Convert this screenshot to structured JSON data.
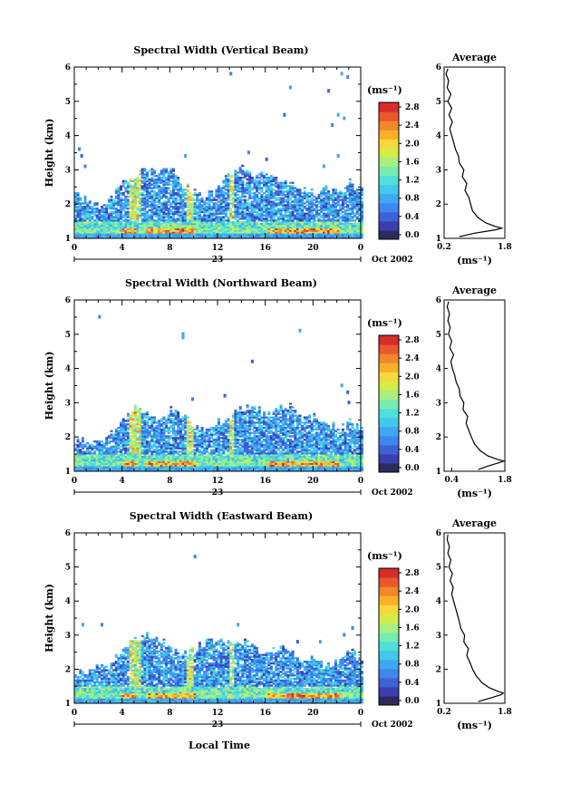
{
  "colors": {
    "scale": [
      "#2d2a5c",
      "#3a3fb0",
      "#3c62d8",
      "#3f86ef",
      "#3fa8f2",
      "#42c8ec",
      "#4fe0d8",
      "#78ecb0",
      "#a8f080",
      "#d4ec48",
      "#f6d83a",
      "#f8b02a",
      "#f3872a",
      "#e8582c",
      "#d62d2d"
    ]
  },
  "x_axis": {
    "ticks": [
      "0",
      "4",
      "8",
      "12",
      "16",
      "20",
      "0"
    ],
    "date_day": "23",
    "date_month": "Oct 2002",
    "label": "Local Time"
  },
  "colorbar": {
    "unit": "(ms⁻¹)"
  },
  "profile_unit": "(ms⁻¹)",
  "chart_data": [
    {
      "type": "heatmap",
      "title": "Spectral Width (Vertical Beam)",
      "ylabel": "Height (km)",
      "xlim": [
        0,
        24
      ],
      "ylim": [
        1,
        6
      ],
      "yticks": [
        "1",
        "2",
        "3",
        "4",
        "5",
        "6"
      ],
      "colorbar_ticks": [
        "0.0",
        "0.4",
        "0.8",
        "1.2",
        "1.6",
        "2.0",
        "2.4",
        "2.8"
      ],
      "colorbar_range": [
        0,
        3.0
      ],
      "profile": {
        "title": "Average",
        "xticks": [
          "0.2",
          "1.8"
        ],
        "xlim": [
          0.2,
          1.8
        ],
        "height": [
          1.05,
          1.15,
          1.25,
          1.3,
          1.35,
          1.45,
          1.6,
          1.8,
          2.0,
          2.2,
          2.4,
          2.6,
          2.8,
          3.0,
          3.2,
          3.4,
          3.6,
          3.8,
          4.0,
          4.2,
          4.4,
          4.6,
          4.8,
          5.0,
          5.2,
          5.4,
          5.6,
          5.8,
          5.95
        ],
        "width": [
          0.6,
          1.0,
          1.55,
          1.72,
          1.55,
          1.3,
          1.1,
          0.95,
          0.9,
          0.85,
          0.75,
          0.8,
          0.68,
          0.72,
          0.6,
          0.58,
          0.5,
          0.45,
          0.4,
          0.35,
          0.42,
          0.33,
          0.4,
          0.3,
          0.38,
          0.28,
          0.32,
          0.25,
          0.3
        ]
      }
    },
    {
      "type": "heatmap",
      "title": "Spectral Width (Northward Beam)",
      "ylabel": "Height (km)",
      "xlim": [
        0,
        24
      ],
      "ylim": [
        1,
        6
      ],
      "yticks": [
        "1",
        "2",
        "3",
        "4",
        "5",
        "6"
      ],
      "colorbar_ticks": [
        "0.0",
        "0.4",
        "0.8",
        "1.2",
        "1.6",
        "2.0",
        "2.4",
        "2.8"
      ],
      "colorbar_range": [
        0,
        3.0
      ],
      "profile": {
        "title": "Average",
        "xticks": [
          "0.4",
          "1.8"
        ],
        "xlim": [
          0.2,
          1.8
        ],
        "height": [
          1.05,
          1.15,
          1.25,
          1.3,
          1.35,
          1.45,
          1.6,
          1.8,
          2.0,
          2.2,
          2.4,
          2.6,
          2.8,
          3.0,
          3.2,
          3.4,
          3.6,
          3.8,
          4.0,
          4.2,
          4.4,
          4.6,
          4.8,
          5.0,
          5.2,
          5.4,
          5.6,
          5.8,
          5.95
        ],
        "width": [
          1.1,
          1.35,
          1.65,
          1.78,
          1.6,
          1.35,
          1.15,
          1.0,
          0.92,
          0.85,
          0.78,
          0.82,
          0.7,
          0.72,
          0.62,
          0.6,
          0.52,
          0.48,
          0.42,
          0.38,
          0.45,
          0.35,
          0.4,
          0.32,
          0.36,
          0.3,
          0.34,
          0.28,
          0.32
        ]
      }
    },
    {
      "type": "heatmap",
      "title": "Spectral Width (Eastward Beam)",
      "ylabel": "Height (km)",
      "xlim": [
        0,
        24
      ],
      "ylim": [
        1,
        6
      ],
      "yticks": [
        "1",
        "2",
        "3",
        "4",
        "5",
        "6"
      ],
      "colorbar_ticks": [
        "0.0",
        "0.4",
        "0.8",
        "1.2",
        "1.6",
        "2.0",
        "2.4",
        "2.8"
      ],
      "colorbar_range": [
        0,
        3.0
      ],
      "profile": {
        "title": "Average",
        "xticks": [
          "0.2",
          "1.8"
        ],
        "xlim": [
          0.2,
          1.8
        ],
        "height": [
          1.05,
          1.15,
          1.25,
          1.3,
          1.35,
          1.45,
          1.6,
          1.8,
          2.0,
          2.2,
          2.4,
          2.6,
          2.8,
          3.0,
          3.2,
          3.4,
          3.6,
          3.8,
          4.0,
          4.2,
          4.4,
          4.6,
          4.8,
          5.0,
          5.2,
          5.4,
          5.6,
          5.8,
          5.95
        ],
        "width": [
          1.1,
          1.4,
          1.7,
          1.76,
          1.62,
          1.4,
          1.2,
          1.05,
          0.95,
          0.88,
          0.8,
          0.84,
          0.72,
          0.74,
          0.64,
          0.6,
          0.55,
          0.5,
          0.45,
          0.4,
          0.44,
          0.36,
          0.42,
          0.33,
          0.38,
          0.3,
          0.34,
          0.28,
          0.3
        ]
      }
    }
  ]
}
